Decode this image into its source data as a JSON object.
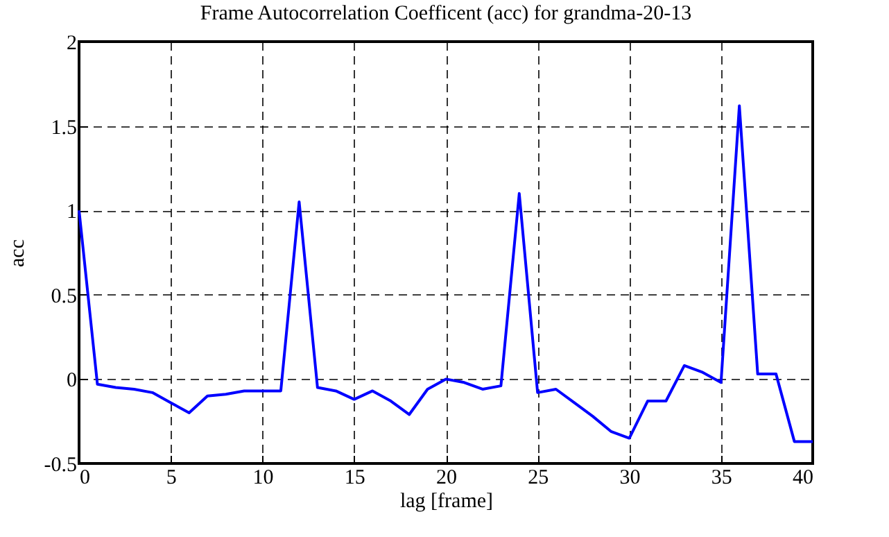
{
  "chart_data": {
    "type": "line",
    "title": "Frame Autocorrelation Coefficent (acc) for grandma-20-13",
    "xlabel": "lag [frame]",
    "ylabel": "acc",
    "x": [
      0,
      1,
      2,
      3,
      4,
      5,
      6,
      7,
      8,
      9,
      10,
      11,
      12,
      13,
      14,
      15,
      16,
      17,
      18,
      19,
      20,
      21,
      22,
      23,
      24,
      25,
      26,
      27,
      28,
      29,
      30,
      31,
      32,
      33,
      34,
      35,
      36,
      37,
      38,
      39,
      40
    ],
    "series": [
      {
        "color": "#0000ff",
        "values": [
          1.0,
          -0.03,
          -0.05,
          -0.06,
          -0.08,
          -0.14,
          -0.2,
          -0.1,
          -0.09,
          -0.07,
          -0.07,
          -0.07,
          1.05,
          -0.05,
          -0.07,
          -0.12,
          -0.07,
          -0.13,
          -0.21,
          -0.06,
          0.0,
          -0.02,
          -0.06,
          -0.04,
          1.1,
          -0.08,
          -0.06,
          -0.14,
          -0.22,
          -0.31,
          -0.35,
          -0.13,
          -0.13,
          0.08,
          0.04,
          -0.02,
          1.62,
          0.03,
          0.03,
          -0.37,
          -0.37
        ]
      }
    ],
    "xlim": [
      0,
      40
    ],
    "xticks": [
      0,
      5,
      10,
      15,
      20,
      25,
      30,
      35,
      40
    ],
    "ylim": [
      -0.5,
      2
    ],
    "yticks": [
      -0.5,
      0,
      0.5,
      1,
      1.5,
      2
    ],
    "grid": true,
    "line_style": "solid",
    "marker": "none"
  }
}
